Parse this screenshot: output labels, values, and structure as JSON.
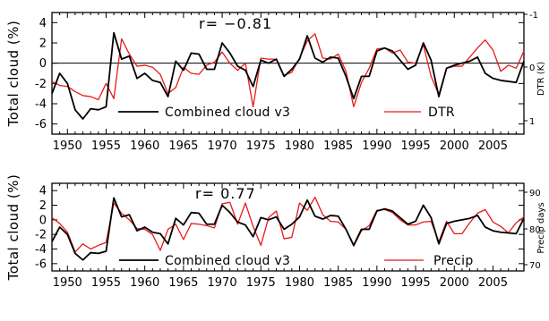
{
  "chart_data": [
    {
      "type": "line",
      "annotation": "r= −0.81",
      "ylabel_left": "Total cloud (%)",
      "ylabel_right": "DTR (K)",
      "ylim_left": [
        -7,
        5
      ],
      "yticks_left": [
        "-6",
        "-4",
        "-2",
        "0",
        "2",
        "4"
      ],
      "right_axis": {
        "inverted": true,
        "ticks": [
          "-1",
          "0",
          "1"
        ]
      },
      "xlim": [
        1948,
        2009
      ],
      "xticks": [
        "1950",
        "1955",
        "1960",
        "1965",
        "1970",
        "1975",
        "1980",
        "1985",
        "1990",
        "1995",
        "2000",
        "2005"
      ],
      "zero_line": true,
      "legend_placement": "bottom",
      "x": [
        1948,
        1949,
        1950,
        1951,
        1952,
        1953,
        1954,
        1955,
        1956,
        1957,
        1958,
        1959,
        1960,
        1961,
        1962,
        1963,
        1964,
        1965,
        1966,
        1967,
        1968,
        1969,
        1970,
        1971,
        1972,
        1973,
        1974,
        1975,
        1976,
        1977,
        1978,
        1979,
        1980,
        1981,
        1982,
        1983,
        1984,
        1985,
        1986,
        1987,
        1988,
        1989,
        1990,
        1991,
        1992,
        1993,
        1994,
        1995,
        1996,
        1997,
        1998,
        1999,
        2000,
        2001,
        2002,
        2003,
        2004,
        2005,
        2006,
        2007,
        2008,
        2009
      ],
      "series": [
        {
          "name": "Combined cloud v3",
          "color": "#000000",
          "values": [
            -3.0,
            -1.0,
            -2.0,
            -4.6,
            -5.5,
            -4.5,
            -4.6,
            -4.3,
            3.0,
            0.4,
            0.7,
            -1.5,
            -1.0,
            -1.7,
            -1.9,
            -3.3,
            0.2,
            -0.7,
            1.0,
            0.9,
            -0.6,
            -0.6,
            2.0,
            1.0,
            -0.3,
            -0.7,
            -2.3,
            0.3,
            0.0,
            0.4,
            -1.3,
            -0.6,
            0.4,
            2.7,
            0.5,
            0.1,
            0.6,
            0.5,
            -1.3,
            -3.5,
            -1.3,
            -1.3,
            1.2,
            1.5,
            1.2,
            0.3,
            -0.6,
            -0.2,
            2.0,
            0.3,
            -3.3,
            -0.5,
            -0.2,
            0.0,
            0.2,
            0.6,
            -1.0,
            -1.5,
            -1.7,
            -1.8,
            -1.9,
            0.2
          ]
        },
        {
          "name": "DTR",
          "color": "#e8191b",
          "values": [
            -1.8,
            -2.2,
            -2.3,
            -2.8,
            -3.2,
            -3.3,
            -3.6,
            -2.0,
            -3.5,
            2.4,
            0.9,
            -0.3,
            -0.2,
            -0.4,
            -1.1,
            -3.0,
            -2.4,
            -0.4,
            -1.0,
            -1.1,
            -0.2,
            0.1,
            1.1,
            0.0,
            -0.7,
            0.0,
            -4.3,
            0.5,
            0.4,
            0.4,
            -1.2,
            -0.9,
            0.5,
            2.2,
            2.9,
            0.5,
            0.4,
            0.9,
            -0.8,
            -4.3,
            -1.9,
            -0.5,
            1.4,
            1.5,
            1.0,
            1.3,
            0.1,
            0.0,
            1.8,
            -1.3,
            -3.1,
            -0.5,
            -0.3,
            -0.3,
            0.6,
            1.5,
            2.3,
            1.3,
            -0.8,
            -0.2,
            -0.5,
            1.2
          ]
        }
      ]
    },
    {
      "type": "line",
      "annotation": "r= 0.77",
      "ylabel_left": "Total cloud (%)",
      "ylabel_right": "Precip days",
      "ylim_left": [
        -7,
        5
      ],
      "yticks_left": [
        "-6",
        "-4",
        "-2",
        "0",
        "2",
        "4"
      ],
      "right_axis": {
        "inverted": false,
        "ticks": [
          "70",
          "80",
          "90"
        ]
      },
      "xlim": [
        1948,
        2009
      ],
      "xticks": [
        "1950",
        "1955",
        "1960",
        "1965",
        "1970",
        "1975",
        "1980",
        "1985",
        "1990",
        "1995",
        "2000",
        "2005"
      ],
      "zero_line": false,
      "legend_placement": "bottom",
      "x": [
        1948,
        1949,
        1950,
        1951,
        1952,
        1953,
        1954,
        1955,
        1956,
        1957,
        1958,
        1959,
        1960,
        1961,
        1962,
        1963,
        1964,
        1965,
        1966,
        1967,
        1968,
        1969,
        1970,
        1971,
        1972,
        1973,
        1974,
        1975,
        1976,
        1977,
        1978,
        1979,
        1980,
        1981,
        1982,
        1983,
        1984,
        1985,
        1986,
        1987,
        1988,
        1989,
        1990,
        1991,
        1992,
        1993,
        1994,
        1995,
        1996,
        1997,
        1998,
        1999,
        2000,
        2001,
        2002,
        2003,
        2004,
        2005,
        2006,
        2007,
        2008,
        2009
      ],
      "series": [
        {
          "name": "Combined cloud v3",
          "color": "#000000",
          "values": [
            -3.0,
            -1.0,
            -2.0,
            -4.6,
            -5.5,
            -4.5,
            -4.6,
            -4.3,
            3.0,
            0.4,
            0.7,
            -1.5,
            -1.0,
            -1.7,
            -1.9,
            -3.3,
            0.2,
            -0.7,
            1.0,
            0.9,
            -0.6,
            -0.6,
            2.0,
            1.0,
            -0.3,
            -0.7,
            -2.3,
            0.3,
            0.0,
            0.4,
            -1.3,
            -0.6,
            0.4,
            2.7,
            0.5,
            0.1,
            0.6,
            0.5,
            -1.3,
            -3.5,
            -1.3,
            -1.3,
            1.2,
            1.5,
            1.2,
            0.3,
            -0.6,
            -0.2,
            2.0,
            0.3,
            -3.3,
            -0.5,
            -0.2,
            0.0,
            0.2,
            0.6,
            -1.0,
            -1.5,
            -1.7,
            -1.8,
            -1.9,
            0.2
          ]
        },
        {
          "name": "Precip",
          "color": "#e8191b",
          "values": [
            0.3,
            -0.5,
            -1.7,
            -4.4,
            -3.3,
            -4.0,
            -3.5,
            -3.1,
            2.3,
            0.9,
            0.0,
            -1.2,
            -1.3,
            -2.0,
            -4.2,
            -1.3,
            -0.6,
            -2.7,
            -0.5,
            -0.6,
            -0.8,
            -1.1,
            2.2,
            2.4,
            -0.6,
            2.3,
            -0.9,
            -3.5,
            0.3,
            1.2,
            -2.6,
            -2.4,
            2.3,
            1.3,
            3.1,
            0.7,
            -0.2,
            -0.3,
            -1.3,
            -3.6,
            -1.5,
            -0.8,
            1.3,
            1.4,
            1.0,
            0.0,
            -0.7,
            -0.7,
            -0.3,
            -0.2,
            -3.0,
            -0.2,
            -1.9,
            -1.9,
            -0.4,
            0.9,
            1.4,
            -0.3,
            -0.9,
            -1.8,
            -0.4,
            0.4
          ]
        }
      ]
    }
  ]
}
